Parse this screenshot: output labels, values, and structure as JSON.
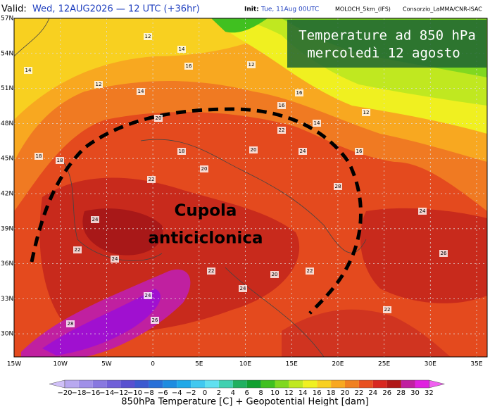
{
  "header": {
    "valid_label": "Valid:",
    "valid_time": "Wed, 12AUG2026 — 12 UTC (+36hr)",
    "init_label": "Init:",
    "init_time": "Tue, 11Aug 00UTC",
    "model": "MOLOCH_5km_(IFS)",
    "credit": "Consorzio_LaMMA/CNR-ISAC"
  },
  "overlay": {
    "line1": "Temperature ad 850 hPa",
    "line2": "mercoledì 12 agosto"
  },
  "annotation": {
    "line1": "Cupola",
    "line2": "anticiclonica"
  },
  "map": {
    "lat_labels": [
      "57N",
      "54N",
      "51N",
      "48N",
      "45N",
      "42N",
      "39N",
      "36N",
      "33N",
      "30N"
    ],
    "lon_labels": [
      "15W",
      "10W",
      "5W",
      "0",
      "5E",
      "10E",
      "15E",
      "20E",
      "25E",
      "30E",
      "35E"
    ],
    "contour_labels": [
      "12",
      "14",
      "12",
      "16",
      "14",
      "12",
      "16",
      "14",
      "12",
      "16",
      "18",
      "20",
      "18",
      "20",
      "20",
      "22",
      "24",
      "22",
      "24",
      "24",
      "22",
      "20",
      "22",
      "24",
      "28",
      "26",
      "24",
      "22",
      "26",
      "28",
      "24",
      "22",
      "18",
      "16",
      "14"
    ]
  },
  "colorbar": {
    "title": "850hPa Temperature [C] + Geopotential Height [dam]",
    "ticks": [
      "−20",
      "−18",
      "−16",
      "−14",
      "−12",
      "−10",
      "−8",
      "−6",
      "−4",
      "−2",
      "0",
      "2",
      "4",
      "6",
      "8",
      "10",
      "12",
      "14",
      "16",
      "18",
      "20",
      "22",
      "24",
      "26",
      "28",
      "30",
      "32"
    ],
    "colors": [
      "#b8a8f0",
      "#a090e8",
      "#8878e0",
      "#7060d8",
      "#5850d0",
      "#3c5ad0",
      "#2870d8",
      "#1e8ce0",
      "#20a8e8",
      "#40c8f0",
      "#60e0f0",
      "#40d0b0",
      "#20b060",
      "#10a030",
      "#40c020",
      "#80d820",
      "#c0e820",
      "#f0f020",
      "#f8d020",
      "#f8a820",
      "#f08020",
      "#e85020",
      "#d82820",
      "#b01818",
      "#c020a0",
      "#e020e0"
    ],
    "under_color": "#d0c0f8",
    "over_color": "#f060f0"
  }
}
